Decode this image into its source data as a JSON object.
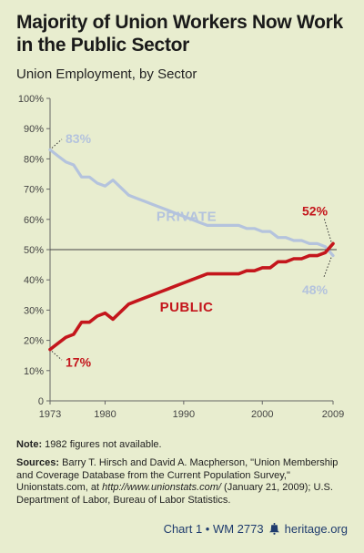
{
  "header": {
    "title_line1": "Majority of Union Workers Now Work",
    "title_line2": "in the Public Sector",
    "subtitle": "Union Employment, by Sector"
  },
  "chart_data": {
    "type": "line",
    "title": "Majority of Union Workers Now Work in the Public Sector",
    "subtitle": "Union Employment, by Sector",
    "xlim": [
      1973,
      2009
    ],
    "ylim": [
      0,
      100
    ],
    "xticks": [
      "1973",
      "1980",
      "1990",
      "2000",
      "2009"
    ],
    "yticks": [
      "0",
      "10%",
      "20%",
      "30%",
      "40%",
      "50%",
      "60%",
      "70%",
      "80%",
      "90%",
      "100%"
    ],
    "grid": false,
    "reference_line": 50,
    "x": [
      1973,
      1974,
      1975,
      1976,
      1977,
      1978,
      1979,
      1980,
      1981,
      1983,
      1984,
      1985,
      1986,
      1987,
      1988,
      1989,
      1990,
      1991,
      1992,
      1993,
      1994,
      1995,
      1996,
      1997,
      1998,
      1999,
      2000,
      2001,
      2002,
      2003,
      2004,
      2005,
      2006,
      2007,
      2008,
      2009
    ],
    "series": [
      {
        "name": "PRIVATE",
        "color": "#b4c3dd",
        "values": [
          83,
          81,
          79,
          78,
          74,
          74,
          72,
          71,
          73,
          68,
          67,
          66,
          65,
          64,
          63,
          62,
          61,
          60,
          59,
          58,
          58,
          58,
          58,
          58,
          57,
          57,
          56,
          56,
          54,
          54,
          53,
          53,
          52,
          52,
          51,
          48
        ]
      },
      {
        "name": "PUBLIC",
        "color": "#c4161c",
        "values": [
          17,
          19,
          21,
          22,
          26,
          26,
          28,
          29,
          27,
          32,
          33,
          34,
          35,
          36,
          37,
          38,
          39,
          40,
          41,
          42,
          42,
          42,
          42,
          42,
          43,
          43,
          44,
          44,
          46,
          46,
          47,
          47,
          48,
          48,
          49,
          52
        ]
      }
    ],
    "annotations": {
      "private_start": "83%",
      "private_end": "48%",
      "public_start": "17%",
      "public_end": "52%"
    }
  },
  "note": {
    "label": "Note:",
    "text": " 1982 figures not available."
  },
  "sources": {
    "label": "Sources:",
    "text1": " Barry T. Hirsch and David A. Macpherson, \"Union Membership and Coverage Database from the Current Population Survey,\" Unionstats.com, at ",
    "url": "http://www.unionstats.com/",
    "text2": " (January 21, 2009); U.S. Department of Labor, Bureau of Labor Statistics."
  },
  "footer": {
    "chart_label": "Chart 1 • WM 2773",
    "brand": "heritage.org"
  },
  "colors": {
    "background": "#e8edcf",
    "private": "#b4c3dd",
    "public": "#c4161c",
    "axis": "#666666",
    "footer": "#1f3c6e"
  }
}
